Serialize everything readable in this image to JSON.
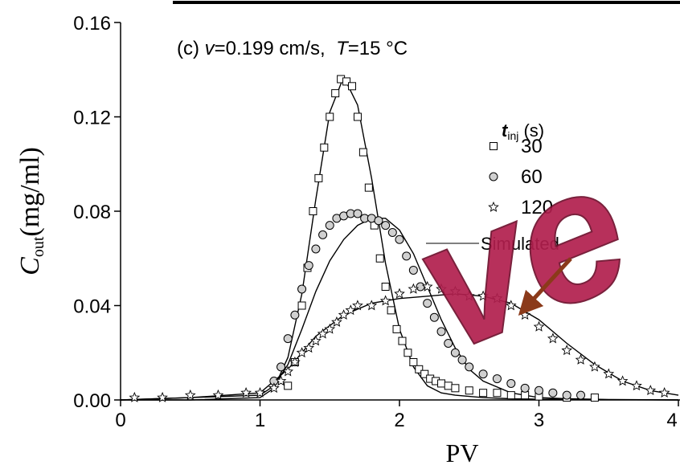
{
  "chart_data": {
    "type": "scatter",
    "annotation": [
      "(c) ",
      "v",
      "=0.199 cm/s,  ",
      "T",
      "=15 °C"
    ],
    "xlabel": "PV",
    "ylabel": [
      "C",
      "out",
      "(mg/ml)"
    ],
    "legend_title": [
      "t",
      "inj",
      " (s)"
    ],
    "xlim": [
      0,
      4
    ],
    "xticks": [
      0,
      1,
      2,
      3,
      4
    ],
    "ylim": [
      0,
      0.16
    ],
    "yticks": [
      {
        "value": 0,
        "label": "0.00"
      },
      {
        "value": 0.04,
        "label": "0.04"
      },
      {
        "value": 0.08,
        "label": "0.08"
      },
      {
        "value": 0.12,
        "label": "0.12"
      },
      {
        "value": 0.16,
        "label": "0.16"
      }
    ],
    "series": [
      {
        "name": "30",
        "marker": "square",
        "color": "#000000",
        "x": [
          1.2,
          1.25,
          1.3,
          1.34,
          1.38,
          1.42,
          1.46,
          1.5,
          1.54,
          1.58,
          1.62,
          1.66,
          1.7,
          1.74,
          1.78,
          1.82,
          1.86,
          1.9,
          1.94,
          1.98,
          2.02,
          2.06,
          2.1,
          2.14,
          2.18,
          2.22,
          2.26,
          2.3,
          2.35,
          2.4,
          2.5,
          2.6,
          2.7,
          2.8,
          2.9,
          3.0,
          3.2,
          3.4
        ],
        "values": [
          0.006,
          0.016,
          0.04,
          0.056,
          0.08,
          0.094,
          0.107,
          0.12,
          0.13,
          0.136,
          0.135,
          0.133,
          0.12,
          0.105,
          0.09,
          0.074,
          0.06,
          0.048,
          0.038,
          0.03,
          0.025,
          0.02,
          0.016,
          0.013,
          0.011,
          0.009,
          0.008,
          0.007,
          0.006,
          0.005,
          0.004,
          0.003,
          0.003,
          0.002,
          0.002,
          0.0015,
          0.001,
          0.001
        ]
      },
      {
        "name": "60",
        "marker": "circle",
        "color": "#000000",
        "x": [
          1.1,
          1.15,
          1.2,
          1.25,
          1.3,
          1.35,
          1.4,
          1.45,
          1.5,
          1.55,
          1.6,
          1.65,
          1.7,
          1.75,
          1.8,
          1.85,
          1.9,
          1.95,
          2.0,
          2.05,
          2.1,
          2.15,
          2.2,
          2.25,
          2.3,
          2.35,
          2.4,
          2.45,
          2.5,
          2.6,
          2.7,
          2.8,
          2.9,
          3.0,
          3.1,
          3.2,
          3.3
        ],
        "values": [
          0.008,
          0.014,
          0.026,
          0.036,
          0.047,
          0.057,
          0.064,
          0.07,
          0.074,
          0.077,
          0.078,
          0.079,
          0.079,
          0.077,
          0.077,
          0.076,
          0.074,
          0.071,
          0.068,
          0.061,
          0.055,
          0.048,
          0.041,
          0.035,
          0.029,
          0.024,
          0.02,
          0.017,
          0.014,
          0.011,
          0.009,
          0.007,
          0.005,
          0.004,
          0.003,
          0.002,
          0.002
        ]
      },
      {
        "name": "120",
        "marker": "star",
        "color": "#000000",
        "x": [
          0.1,
          0.3,
          0.5,
          0.7,
          0.9,
          1.0,
          1.1,
          1.15,
          1.2,
          1.25,
          1.3,
          1.35,
          1.4,
          1.45,
          1.5,
          1.55,
          1.6,
          1.65,
          1.7,
          1.8,
          1.9,
          2.0,
          2.1,
          2.2,
          2.3,
          2.4,
          2.5,
          2.6,
          2.7,
          2.8,
          2.9,
          3.0,
          3.1,
          3.2,
          3.3,
          3.4,
          3.5,
          3.6,
          3.7,
          3.8,
          3.9
        ],
        "values": [
          0.001,
          0.001,
          0.002,
          0.002,
          0.003,
          0.003,
          0.005,
          0.008,
          0.012,
          0.016,
          0.02,
          0.022,
          0.025,
          0.028,
          0.03,
          0.033,
          0.036,
          0.038,
          0.04,
          0.04,
          0.042,
          0.045,
          0.047,
          0.048,
          0.047,
          0.046,
          0.044,
          0.044,
          0.043,
          0.04,
          0.036,
          0.031,
          0.026,
          0.021,
          0.017,
          0.014,
          0.011,
          0.008,
          0.006,
          0.004,
          0.003
        ]
      }
    ],
    "simulated": {
      "label": "Simulated",
      "color": "#000000",
      "curves": [
        {
          "x": [
            0,
            0.5,
            1.0,
            1.1,
            1.2,
            1.3,
            1.4,
            1.5,
            1.6,
            1.7,
            1.8,
            1.9,
            2.0,
            2.1,
            2.2,
            2.3,
            2.4,
            2.6,
            2.8,
            3.0,
            3.5,
            4.0
          ],
          "values": [
            0,
            0,
            0.001,
            0.005,
            0.018,
            0.045,
            0.085,
            0.122,
            0.137,
            0.125,
            0.094,
            0.058,
            0.03,
            0.014,
            0.006,
            0.003,
            0.002,
            0.001,
            0.0005,
            0.0003,
            0.0001,
            0
          ]
        },
        {
          "x": [
            0,
            0.5,
            1.0,
            1.1,
            1.2,
            1.3,
            1.4,
            1.5,
            1.6,
            1.7,
            1.8,
            1.9,
            2.0,
            2.1,
            2.2,
            2.3,
            2.4,
            2.5,
            2.6,
            2.8,
            3.0,
            3.2,
            3.5,
            4.0
          ],
          "values": [
            0,
            0.001,
            0.002,
            0.006,
            0.015,
            0.03,
            0.046,
            0.059,
            0.068,
            0.074,
            0.077,
            0.077,
            0.072,
            0.062,
            0.048,
            0.034,
            0.022,
            0.013,
            0.008,
            0.003,
            0.001,
            0.0005,
            0.0002,
            0
          ]
        },
        {
          "x": [
            0,
            0.5,
            1.0,
            1.2,
            1.4,
            1.6,
            1.8,
            2.0,
            2.2,
            2.4,
            2.6,
            2.8,
            3.0,
            3.2,
            3.4,
            3.6,
            3.8,
            4.0
          ],
          "values": [
            0,
            0.001,
            0.003,
            0.013,
            0.027,
            0.036,
            0.041,
            0.043,
            0.044,
            0.045,
            0.044,
            0.041,
            0.034,
            0.024,
            0.015,
            0.008,
            0.004,
            0.002
          ]
        }
      ]
    },
    "watermark": "ve"
  }
}
